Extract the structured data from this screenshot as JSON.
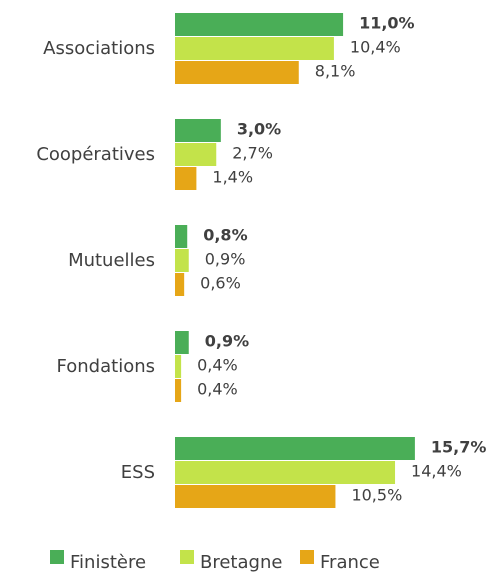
{
  "chart_data": {
    "type": "bar",
    "orientation": "horizontal",
    "categories": [
      "Associations",
      "Coopératives",
      "Mutuelles",
      "Fondations",
      "ESS"
    ],
    "series": [
      {
        "name": "Finistère",
        "color": "#4aae57",
        "values": [
          11.0,
          3.0,
          0.8,
          0.9,
          15.7
        ],
        "value_labels": [
          "11,0%",
          "3,0%",
          "0,8%",
          "0,9%",
          "15,7%"
        ]
      },
      {
        "name": "Bretagne",
        "color": "#c3e34a",
        "values": [
          10.4,
          2.7,
          0.9,
          0.4,
          14.4
        ],
        "value_labels": [
          "10,4%",
          "2,7%",
          "0,9%",
          "0,4%",
          "14,4%"
        ]
      },
      {
        "name": "France",
        "color": "#e6a617",
        "values": [
          8.1,
          1.4,
          0.6,
          0.4,
          10.5
        ],
        "value_labels": [
          "8,1%",
          "1,4%",
          "0,6%",
          "0,4%",
          "10,5%"
        ]
      }
    ],
    "legend": "bottom"
  }
}
